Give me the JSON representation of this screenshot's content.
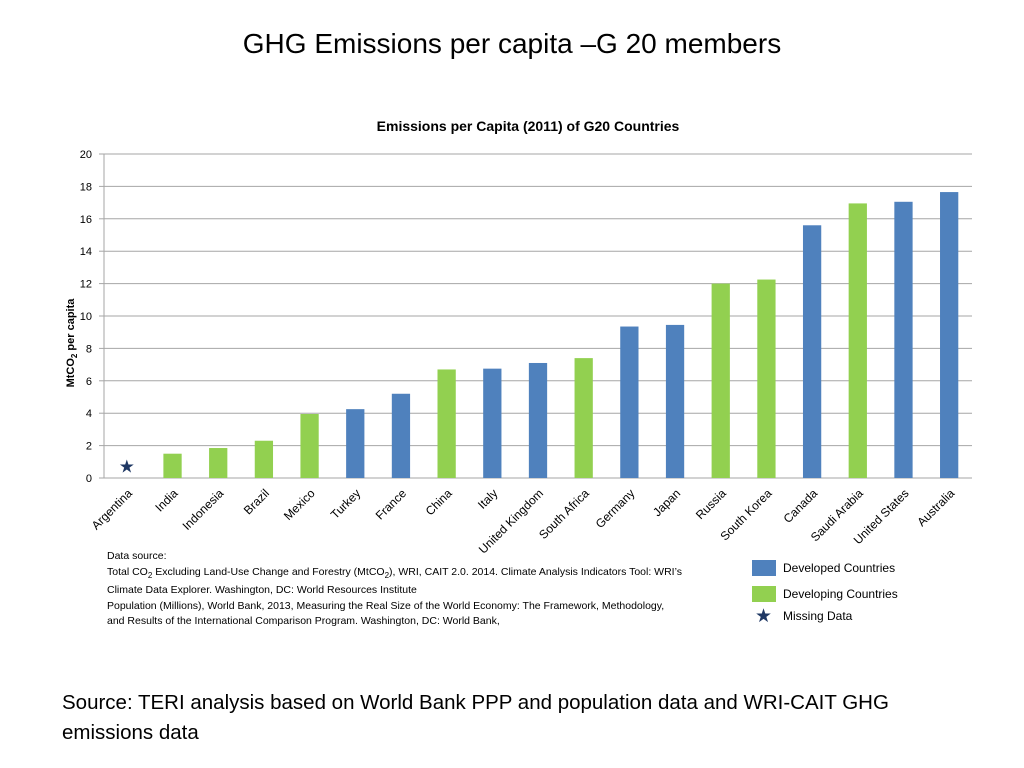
{
  "slide": {
    "title": "GHG Emissions per capita –G 20 members",
    "footer": "Source: TERI analysis based on World Bank PPP and population data and WRI-CAIT GHG emissions data"
  },
  "data_source": {
    "heading": "Data source:",
    "line1_a": "Total CO",
    "line1_sub": "2",
    "line1_b": " Excluding Land-Use Change and Forestry (MtCO",
    "line1_sub2": "2",
    "line1_c": "), WRI, CAIT 2.0. 2014. Climate Analysis Indicators Tool: WRI’s",
    "line2": "Climate Data Explorer. Washington, DC: World Resources Institute",
    "line3": "Population (Millions), World Bank,  2013, Measuring the Real Size of the World Economy: The Framework, Methodology,",
    "line4": "and Results of the International Comparison Program. Washington, DC: World Bank,"
  },
  "legend": {
    "developed": "Developed Countries",
    "developing": "Developing Countries",
    "missing": "Missing Data",
    "star_glyph": "★"
  },
  "colors": {
    "developed": "#4F81BD",
    "developing": "#92D050",
    "missing": "#1F3864",
    "grid": "#A6A6A6"
  },
  "chart_data": {
    "type": "bar",
    "title": "Emissions per Capita (2011) of G20 Countries",
    "ylabel": "MtCO2 per  capita",
    "ylabel_parts": {
      "a": "MtCO",
      "sub": "2",
      "b": " per  capita"
    },
    "xlabel": "",
    "ylim": [
      0,
      20
    ],
    "yticks": [
      0,
      2,
      4,
      6,
      8,
      10,
      12,
      14,
      16,
      18,
      20
    ],
    "grid": true,
    "categories": [
      "Argentina",
      "India",
      "Indonesia",
      "Brazil",
      "Mexico",
      "Turkey",
      "France",
      "China",
      "Italy",
      "United Kingdom",
      "South Africa",
      "Germany",
      "Japan",
      "Russia",
      "South Korea",
      "Canada",
      "Saudi Arabia",
      "United States",
      "Australia"
    ],
    "values": [
      null,
      1.5,
      1.85,
      2.3,
      3.95,
      4.25,
      5.2,
      6.7,
      6.75,
      7.1,
      7.4,
      9.35,
      9.45,
      12.0,
      12.25,
      15.6,
      16.95,
      17.05,
      17.65
    ],
    "group": [
      "missing",
      "developing",
      "developing",
      "developing",
      "developing",
      "developed",
      "developed",
      "developing",
      "developed",
      "developed",
      "developing",
      "developed",
      "developed",
      "developing",
      "developing",
      "developed",
      "developing",
      "developed",
      "developed"
    ],
    "missing_marker_value": 0.7
  }
}
